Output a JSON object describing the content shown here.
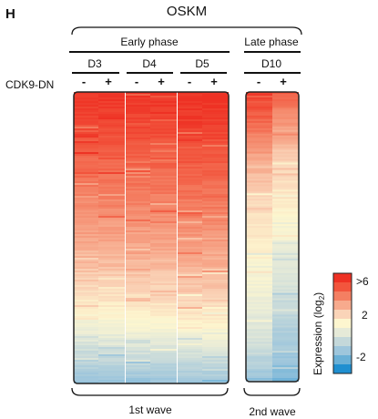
{
  "panel_label": "H",
  "condition": "OSKM",
  "row_label": "CDK9-DN",
  "chart_data": {
    "type": "heatmap",
    "title": "",
    "groups": [
      {
        "phase": "Early phase",
        "wave": "1st wave",
        "days": [
          "D3",
          "D4",
          "D5"
        ]
      },
      {
        "phase": "Late phase",
        "wave": "2nd wave",
        "days": [
          "D10"
        ]
      }
    ],
    "treatments": [
      "-",
      "+"
    ],
    "colorbar": {
      "label": "Expression (log",
      "label_subscript": "2",
      "label_close": ")",
      "ticks": [
        ">6",
        "2",
        "-2"
      ],
      "colors": [
        "#ee3124",
        "#f2553d",
        "#f47f62",
        "#f7aa8d",
        "#fad4b8",
        "#fdf6cf",
        "#e6ead8",
        "#c4d8da",
        "#9ec6dc",
        "#6ab0d6",
        "#1f8fd0"
      ],
      "range_log2": [
        -2.5,
        6.5
      ]
    },
    "series": [
      {
        "day": "D3",
        "treatment": "-",
        "profile_log2": [
          6.4,
          6.0,
          5.4,
          4.9,
          4.4,
          3.9,
          3.3,
          2.6,
          1.6,
          0.3,
          -0.9
        ]
      },
      {
        "day": "D3",
        "treatment": "+",
        "profile_log2": [
          6.4,
          6.0,
          5.4,
          4.9,
          4.4,
          3.9,
          3.3,
          2.6,
          1.7,
          0.4,
          -0.9
        ]
      },
      {
        "day": "D4",
        "treatment": "-",
        "profile_log2": [
          6.4,
          6.0,
          5.5,
          5.0,
          4.5,
          4.0,
          3.4,
          2.7,
          1.9,
          0.5,
          -0.8
        ]
      },
      {
        "day": "D4",
        "treatment": "+",
        "profile_log2": [
          6.4,
          6.0,
          5.5,
          5.0,
          4.5,
          4.0,
          3.4,
          2.8,
          1.9,
          0.5,
          -0.8
        ]
      },
      {
        "day": "D5",
        "treatment": "-",
        "profile_log2": [
          6.5,
          6.2,
          5.7,
          5.2,
          4.7,
          4.2,
          3.6,
          3.0,
          2.1,
          0.6,
          -0.7
        ]
      },
      {
        "day": "D5",
        "treatment": "+",
        "profile_log2": [
          6.5,
          6.2,
          5.7,
          5.2,
          4.7,
          4.2,
          3.6,
          3.0,
          2.1,
          0.7,
          -0.7
        ]
      },
      {
        "day": "D10",
        "treatment": "-",
        "profile_log2": [
          6.3,
          5.2,
          4.1,
          3.3,
          2.7,
          2.3,
          1.9,
          1.5,
          1.0,
          0.3,
          -0.8
        ]
      },
      {
        "day": "D10",
        "treatment": "+",
        "profile_log2": [
          5.4,
          4.2,
          3.3,
          2.6,
          2.1,
          1.6,
          1.0,
          0.5,
          -0.1,
          -0.6,
          -1.3
        ]
      }
    ]
  }
}
